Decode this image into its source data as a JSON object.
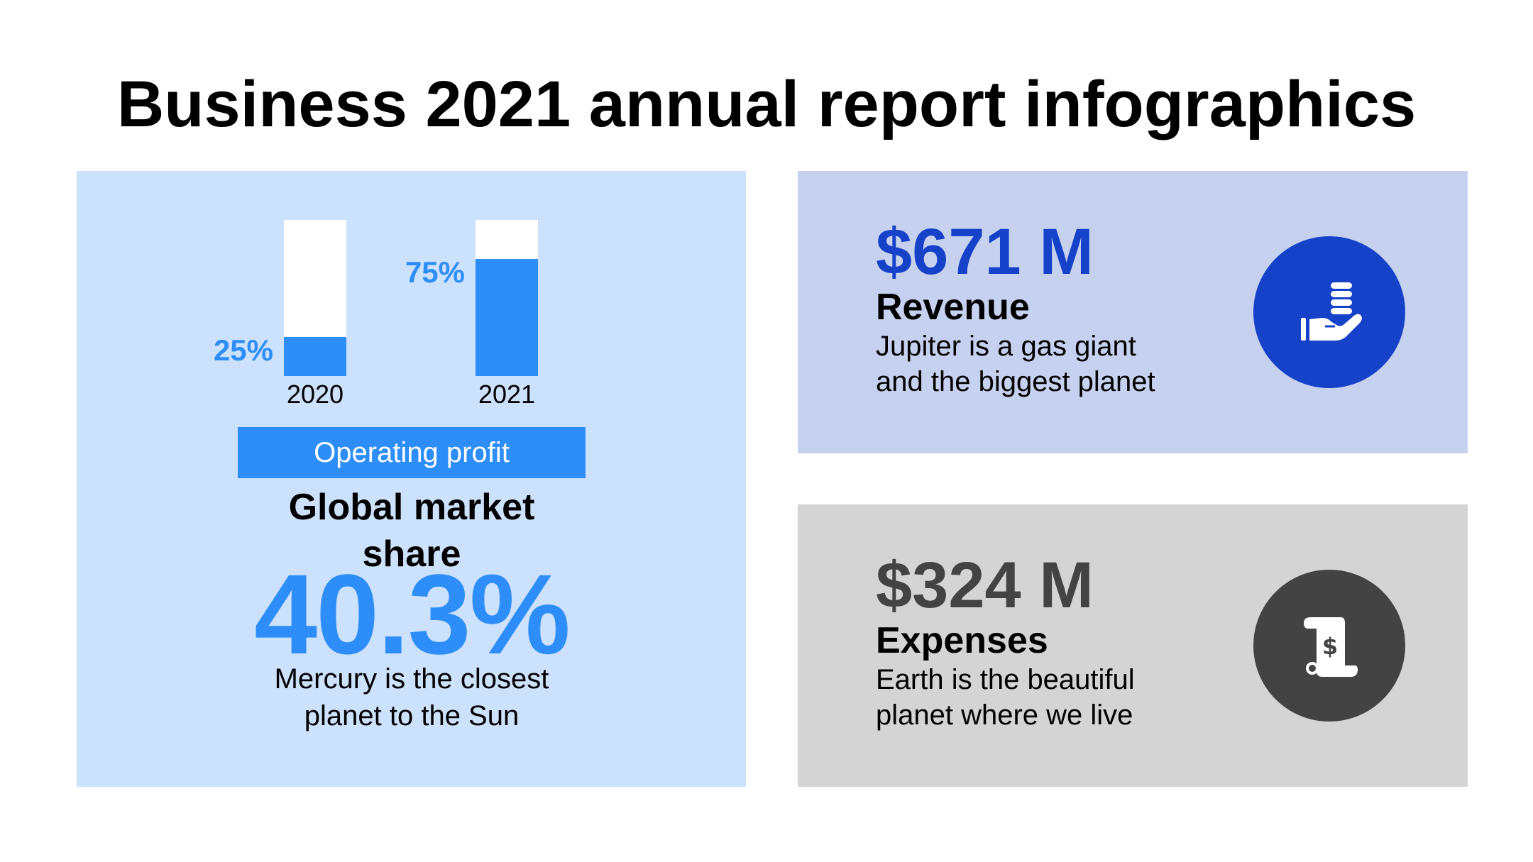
{
  "title": "Business 2021 annual report infographics",
  "colors": {
    "left_panel_bg": "#cce1fb",
    "accent_blue": "#2d8ef9",
    "revenue_panel_bg": "#c6d1ef",
    "revenue_accent": "#1642c9",
    "expenses_panel_bg": "#d4d4d4",
    "expenses_accent": "#434343",
    "bar_track": "#ffffff"
  },
  "chart_data": {
    "type": "bar",
    "categories": [
      "2020",
      "2021"
    ],
    "values": [
      25,
      75
    ],
    "value_labels": [
      "25%",
      "75%"
    ],
    "ylim": [
      0,
      100
    ],
    "xlabel": "Operating profit",
    "grid": false
  },
  "market_share": {
    "heading_lines": [
      "Global market",
      "share"
    ],
    "value": "40.3%",
    "description_lines": [
      "Mercury is the closest",
      "planet to the Sun"
    ]
  },
  "revenue": {
    "amount": "$671 M",
    "label": "Revenue",
    "description_lines": [
      "Jupiter is a gas giant",
      "and the biggest planet"
    ],
    "icon": "hand-holding-coins-icon"
  },
  "expenses": {
    "amount": "$324 M",
    "label": "Expenses",
    "description_lines": [
      "Earth is the beautiful",
      "planet where we live"
    ],
    "icon": "invoice-scroll-dollar-icon"
  }
}
